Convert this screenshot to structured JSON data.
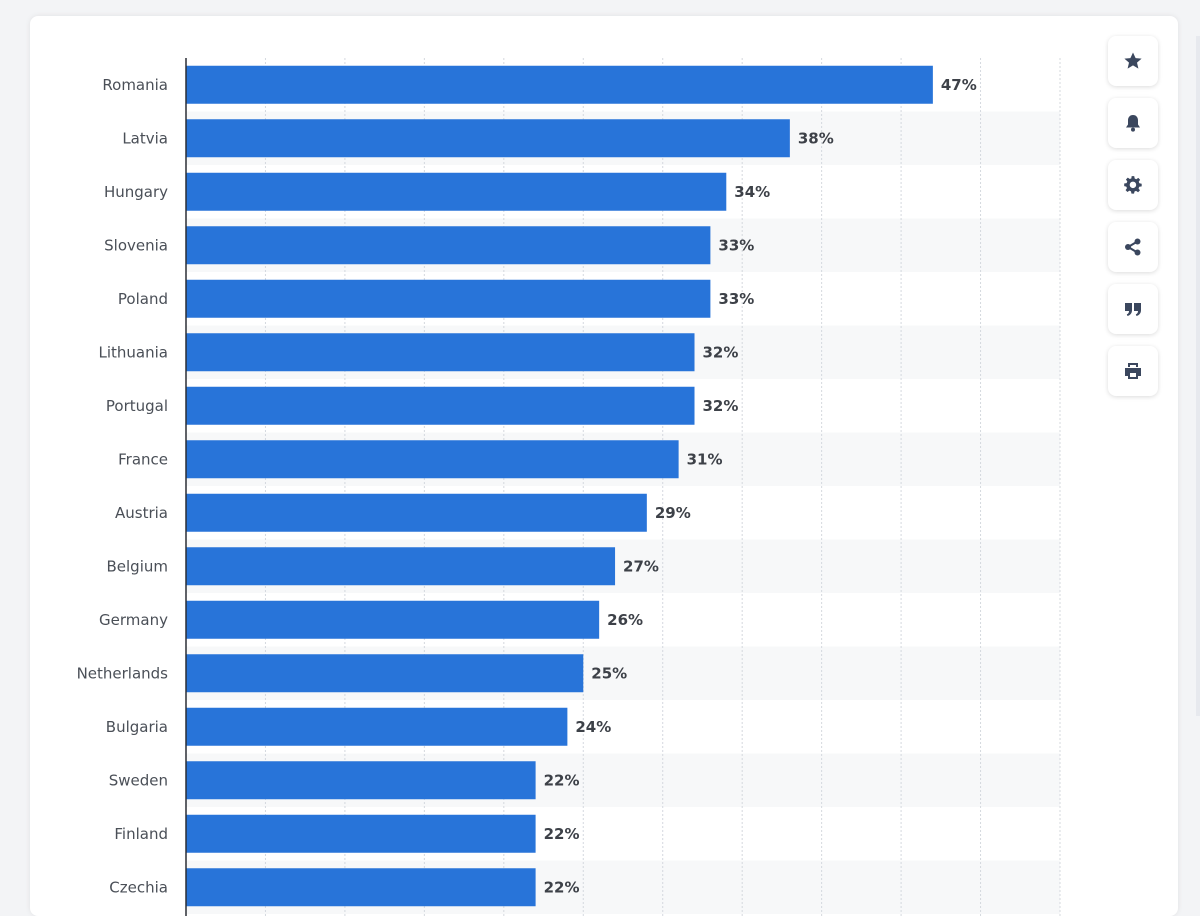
{
  "chart_data": {
    "type": "bar",
    "orientation": "horizontal",
    "categories": [
      "Romania",
      "Latvia",
      "Hungary",
      "Slovenia",
      "Poland",
      "Lithuania",
      "Portugal",
      "France",
      "Austria",
      "Belgium",
      "Germany",
      "Netherlands",
      "Bulgaria",
      "Sweden",
      "Finland",
      "Czechia"
    ],
    "values": [
      47,
      38,
      34,
      33,
      33,
      32,
      32,
      31,
      29,
      27,
      26,
      25,
      24,
      22,
      22,
      22
    ],
    "labels": [
      "47%",
      "38%",
      "34%",
      "33%",
      "33%",
      "32%",
      "32%",
      "31%",
      "29%",
      "27%",
      "26%",
      "25%",
      "24%",
      "22%",
      "22%",
      "22%"
    ],
    "xlim": [
      0,
      55
    ],
    "grid_step": 5,
    "bar_color": "#2874d9",
    "stripe_color": "#f7f8f9",
    "grid_color": "#d4d8de",
    "title": "",
    "xlabel": "",
    "ylabel": ""
  },
  "toolbar": {
    "buttons": [
      {
        "name": "star-button",
        "icon": "star-icon"
      },
      {
        "name": "notification-button",
        "icon": "bell-icon"
      },
      {
        "name": "settings-button",
        "icon": "gear-icon"
      },
      {
        "name": "share-button",
        "icon": "share-icon"
      },
      {
        "name": "cite-button",
        "icon": "quote-icon"
      },
      {
        "name": "print-button",
        "icon": "printer-icon"
      }
    ]
  }
}
